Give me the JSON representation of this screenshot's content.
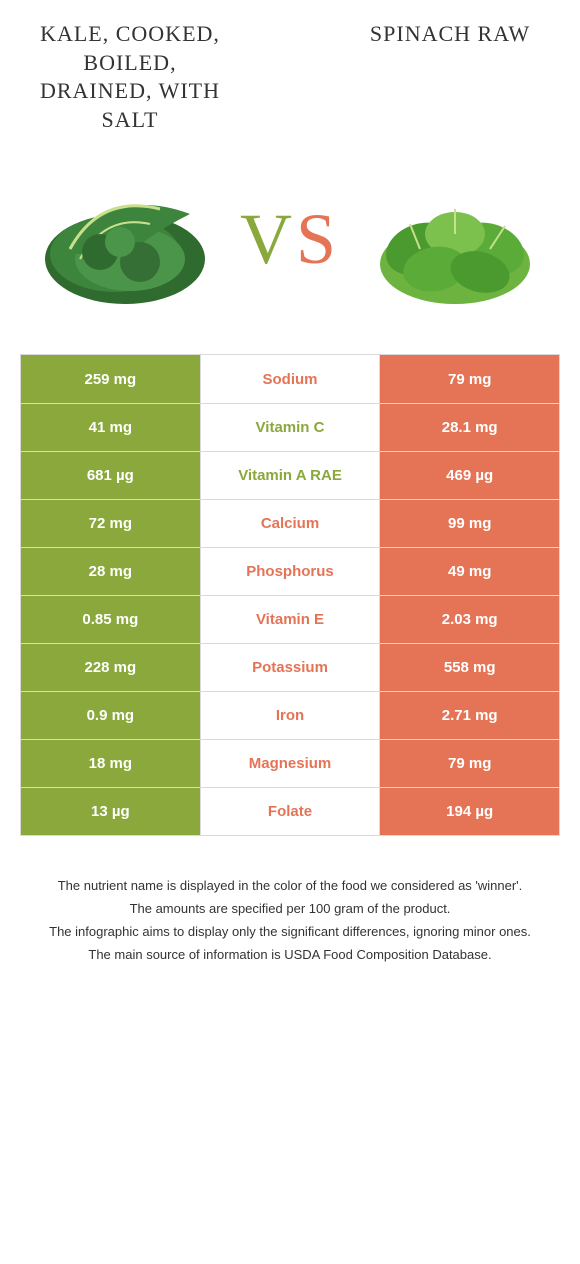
{
  "header": {
    "left_title": "Kale, cooked, boiled, drained, with salt",
    "right_title": "Spinach raw",
    "vs_v": "V",
    "vs_s": "S"
  },
  "colors": {
    "left": "#8aa83c",
    "right": "#e57456",
    "border": "#d9d9d9",
    "bg": "#ffffff"
  },
  "rows": [
    {
      "left": "259 mg",
      "label": "Sodium",
      "right": "79 mg",
      "winner": "right"
    },
    {
      "left": "41 mg",
      "label": "Vitamin C",
      "right": "28.1 mg",
      "winner": "left"
    },
    {
      "left": "681 µg",
      "label": "Vitamin A RAE",
      "right": "469 µg",
      "winner": "left"
    },
    {
      "left": "72 mg",
      "label": "Calcium",
      "right": "99 mg",
      "winner": "right"
    },
    {
      "left": "28 mg",
      "label": "Phosphorus",
      "right": "49 mg",
      "winner": "right"
    },
    {
      "left": "0.85 mg",
      "label": "Vitamin E",
      "right": "2.03 mg",
      "winner": "right"
    },
    {
      "left": "228 mg",
      "label": "Potassium",
      "right": "558 mg",
      "winner": "right"
    },
    {
      "left": "0.9 mg",
      "label": "Iron",
      "right": "2.71 mg",
      "winner": "right"
    },
    {
      "left": "18 mg",
      "label": "Magnesium",
      "right": "79 mg",
      "winner": "right"
    },
    {
      "left": "13 µg",
      "label": "Folate",
      "right": "194 µg",
      "winner": "right"
    }
  ],
  "footer": [
    "The nutrient name is displayed in the color of the food we considered as 'winner'.",
    "The amounts are specified per 100 gram of the product.",
    "The infographic aims to display only the significant differences, ignoring minor ones.",
    "The main source of information is USDA Food Composition Database."
  ]
}
